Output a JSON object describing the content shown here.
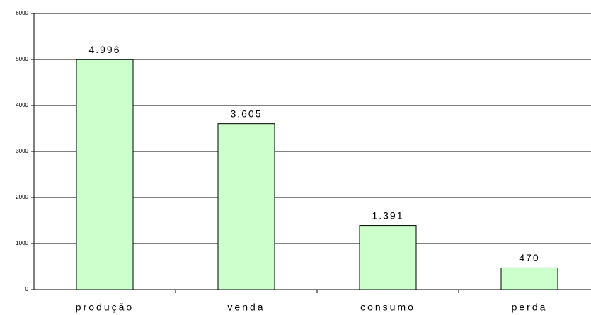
{
  "chart_data": {
    "type": "bar",
    "categories": [
      "produção",
      "venda",
      "consumo",
      "perda"
    ],
    "values": [
      4996,
      3605,
      1391,
      470
    ],
    "value_labels": [
      "4.996",
      "3.605",
      "1.391",
      "470"
    ],
    "color": "#ccffcc",
    "ylim": [
      0,
      6000
    ],
    "yticks": [
      0,
      1000,
      2000,
      3000,
      4000,
      5000,
      6000
    ],
    "grid": true
  }
}
